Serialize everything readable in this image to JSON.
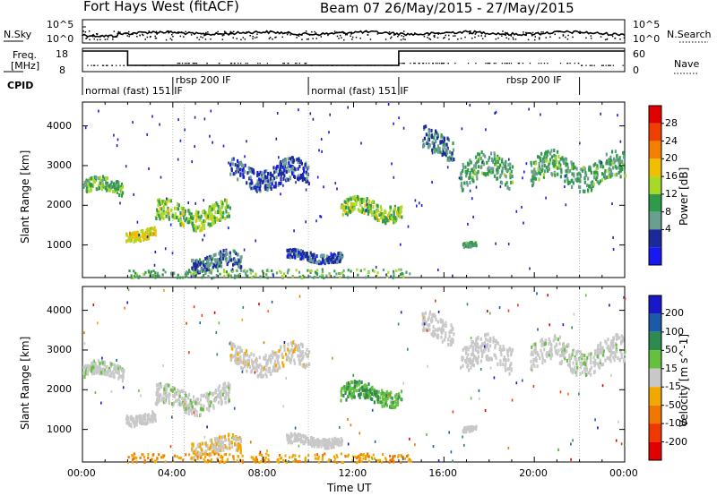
{
  "header": {
    "title": "Fort Hays West (fitACF)",
    "beam_date": "Beam 07 26/May/2015 - 27/May/2015"
  },
  "noise_panel": {
    "left_label": "N.Sky",
    "left_ticks": [
      "10^5",
      "10^0"
    ],
    "right_label": "N.Search",
    "right_ticks": [
      "10^5",
      "10^0"
    ]
  },
  "freq_panel": {
    "left_label_1": "Freq.",
    "left_label_2": "[MHz]",
    "left_ticks": [
      "18",
      "8"
    ],
    "right_label": "Nave",
    "right_ticks": [
      "60",
      "0"
    ]
  },
  "cpid": {
    "label": "CPID",
    "segments": [
      {
        "text": "normal (fast) 151 IF",
        "start_hour": 0,
        "end_hour": 4
      },
      {
        "text": "rbsp 200 IF",
        "start_hour": 4,
        "end_hour": 10
      },
      {
        "text": "normal (fast) 151 IF",
        "start_hour": 10,
        "end_hour": 14
      },
      {
        "text": "rbsp 200 IF",
        "start_hour": 14,
        "end_hour": 22
      }
    ]
  },
  "power_colorbar": {
    "label": "Power [dB]",
    "ticks": [
      "28",
      "24",
      "20",
      "16",
      "12",
      "8",
      "4"
    ],
    "colors": [
      "#e00000",
      "#f04000",
      "#f48000",
      "#f0c000",
      "#a8d828",
      "#2e9a4a",
      "#6a9e90",
      "#1a2a9a",
      "#1818f0"
    ]
  },
  "velocity_colorbar": {
    "label": "Velocity [m s^-1]",
    "ticks": [
      "200",
      "100",
      "50",
      "15",
      "-15",
      "-50",
      "-100",
      "-200"
    ],
    "colors": [
      "#1818c8",
      "#1a5aa8",
      "#2e8a4e",
      "#66c040",
      "#c8c8c8",
      "#f2a800",
      "#f07800",
      "#f03800",
      "#e00000"
    ]
  },
  "chart_data": {
    "type": "heatmap",
    "xlabel": "Time UT",
    "x_ticks": [
      "00:00",
      "04:00",
      "08:00",
      "12:00",
      "16:00",
      "20:00",
      "00:00"
    ],
    "xlim_hours": [
      0,
      24
    ],
    "ylabel": "Slant Range [km]",
    "y_ticks": [
      1000,
      2000,
      3000,
      4000
    ],
    "ylim_km": [
      180,
      4600
    ],
    "panels": [
      "Power",
      "Velocity"
    ],
    "echo_regions": [
      {
        "t0": 0.0,
        "t1": 1.8,
        "r0": 2200,
        "r1": 2800,
        "power": 14,
        "velocity": 5
      },
      {
        "t0": 1.9,
        "t1": 3.2,
        "r0": 1100,
        "r1": 1550,
        "power": 20,
        "velocity": 0
      },
      {
        "t0": 3.2,
        "t1": 6.5,
        "r0": 1350,
        "r1": 2250,
        "power": 16,
        "velocity": 5
      },
      {
        "t0": 6.5,
        "t1": 10.0,
        "r0": 2300,
        "r1": 3300,
        "power": 6,
        "velocity": -5
      },
      {
        "t0": 11.4,
        "t1": 14.1,
        "r0": 1550,
        "r1": 2300,
        "power": 16,
        "velocity": 30
      },
      {
        "t0": 15.0,
        "t1": 16.4,
        "r0": 3100,
        "r1": 4100,
        "power": 8,
        "velocity": 0
      },
      {
        "t0": 16.7,
        "t1": 19.0,
        "r0": 2300,
        "r1": 3500,
        "power": 12,
        "velocity": 0
      },
      {
        "t0": 19.8,
        "t1": 24.0,
        "r0": 2300,
        "r1": 3500,
        "power": 12,
        "velocity": 5
      },
      {
        "t0": 4.8,
        "t1": 7.0,
        "r0": 250,
        "r1": 950,
        "power": 8,
        "velocity": -10
      },
      {
        "t0": 16.8,
        "t1": 17.4,
        "r0": 950,
        "r1": 1150,
        "power": 12,
        "velocity": 0
      },
      {
        "t0": 9.0,
        "t1": 11.5,
        "r0": 550,
        "r1": 950,
        "power": 6,
        "velocity": 0
      }
    ],
    "ground_scatter": {
      "t0": 2.0,
      "t1": 14.5,
      "r0": 200,
      "r1": 420,
      "power": 14,
      "velocity": -30
    }
  }
}
